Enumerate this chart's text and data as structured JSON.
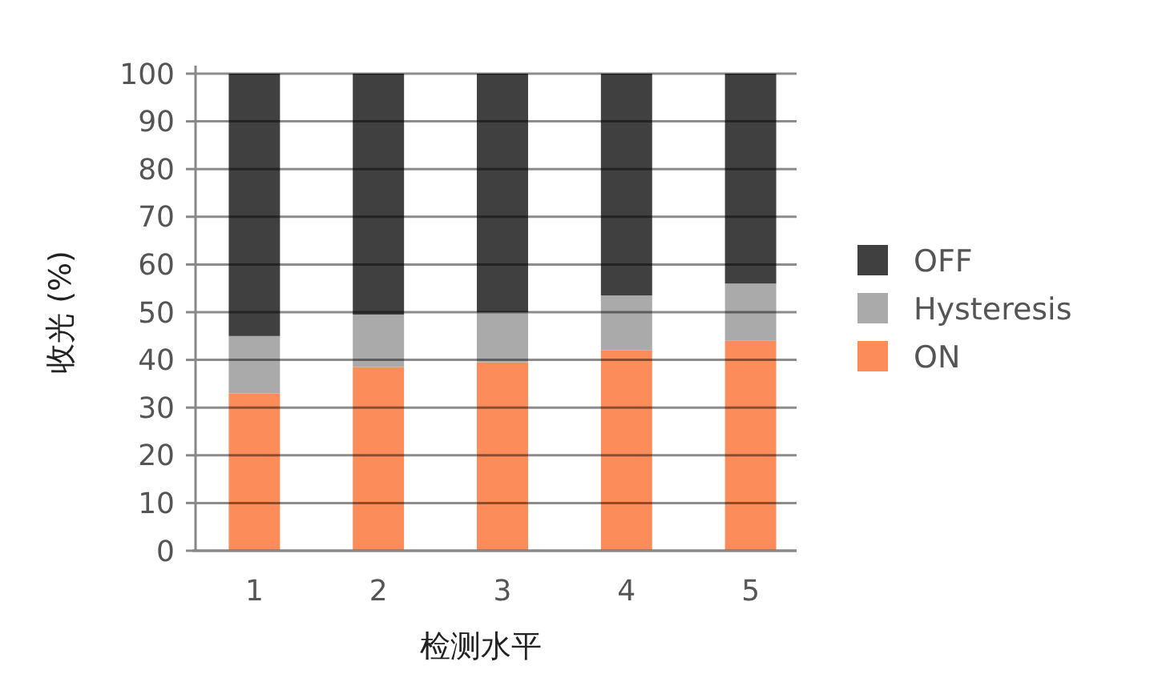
{
  "chart_data": {
    "type": "bar",
    "stacked": true,
    "xlabel": "检测水平",
    "ylabel": "收光 (%)",
    "categories": [
      "1",
      "2",
      "3",
      "4",
      "5"
    ],
    "series": [
      {
        "name": "ON",
        "color": "#fc8c5a",
        "values": [
          33,
          38.5,
          39.5,
          42,
          44
        ]
      },
      {
        "name": "Hysteresis",
        "color": "#aaaaaa",
        "values": [
          12,
          11,
          10.5,
          11.5,
          12
        ]
      },
      {
        "name": "OFF",
        "color": "#404040",
        "values": [
          55,
          50.5,
          50,
          46.5,
          44
        ]
      }
    ],
    "ylim": [
      0,
      100
    ],
    "yticks": [
      0,
      10,
      20,
      30,
      40,
      50,
      60,
      70,
      80,
      90,
      100
    ],
    "grid": "y",
    "legend": "right"
  }
}
